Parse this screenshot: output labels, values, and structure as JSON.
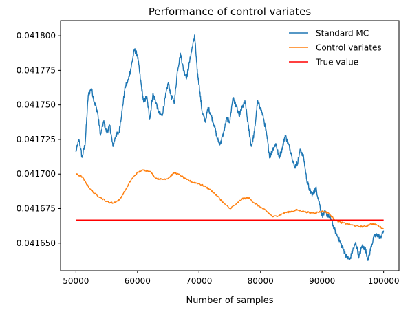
{
  "chart_data": {
    "type": "line",
    "title": "Performance of control variates",
    "xlabel": "Number of samples",
    "ylabel": "",
    "xlim": [
      47500,
      102500
    ],
    "ylim": [
      0.04163,
      0.041811
    ],
    "x_ticks": [
      50000,
      60000,
      70000,
      80000,
      90000,
      100000
    ],
    "x_tick_labels": [
      "50000",
      "60000",
      "70000",
      "80000",
      "90000",
      "100000"
    ],
    "y_ticks": [
      0.04165,
      0.041675,
      0.0417,
      0.041725,
      0.04175,
      0.041775,
      0.0418
    ],
    "y_tick_labels": [
      "0.041650",
      "0.041675",
      "0.041700",
      "0.041725",
      "0.041750",
      "0.041775",
      "0.041800"
    ],
    "grid": false,
    "legend_placement": "top-right",
    "legend": [
      "Standard MC",
      "Control variates",
      "True value"
    ],
    "series": [
      {
        "name": "Standard MC",
        "color": "#1f77b4",
        "points": [
          [
            50000,
            0.041716
          ],
          [
            50500,
            0.041725
          ],
          [
            51000,
            0.041712
          ],
          [
            51500,
            0.041722
          ],
          [
            52000,
            0.041757
          ],
          [
            52500,
            0.041762
          ],
          [
            53000,
            0.041752
          ],
          [
            53500,
            0.041745
          ],
          [
            54000,
            0.041728
          ],
          [
            54500,
            0.041738
          ],
          [
            55000,
            0.04173
          ],
          [
            55500,
            0.041735
          ],
          [
            56000,
            0.04172
          ],
          [
            56500,
            0.041728
          ],
          [
            57000,
            0.04173
          ],
          [
            57500,
            0.041746
          ],
          [
            58000,
            0.041763
          ],
          [
            58500,
            0.041768
          ],
          [
            59000,
            0.041778
          ],
          [
            59500,
            0.04179
          ],
          [
            60000,
            0.041786
          ],
          [
            60500,
            0.041768
          ],
          [
            61000,
            0.041752
          ],
          [
            61500,
            0.041756
          ],
          [
            62000,
            0.04174
          ],
          [
            62500,
            0.041758
          ],
          [
            63000,
            0.041752
          ],
          [
            63500,
            0.041744
          ],
          [
            64000,
            0.041742
          ],
          [
            64500,
            0.041755
          ],
          [
            65000,
            0.041766
          ],
          [
            65500,
            0.041756
          ],
          [
            66000,
            0.041752
          ],
          [
            66500,
            0.041775
          ],
          [
            67000,
            0.041787
          ],
          [
            67500,
            0.041775
          ],
          [
            68000,
            0.04177
          ],
          [
            68500,
            0.041782
          ],
          [
            69000,
            0.041794
          ],
          [
            69300,
            0.0418
          ],
          [
            69700,
            0.041775
          ],
          [
            70000,
            0.041765
          ],
          [
            70500,
            0.041745
          ],
          [
            71000,
            0.041738
          ],
          [
            71500,
            0.041748
          ],
          [
            72000,
            0.041742
          ],
          [
            72500,
            0.041735
          ],
          [
            73000,
            0.041725
          ],
          [
            73500,
            0.041722
          ],
          [
            74000,
            0.04173
          ],
          [
            74500,
            0.04174
          ],
          [
            75000,
            0.041738
          ],
          [
            75500,
            0.041755
          ],
          [
            76000,
            0.04175
          ],
          [
            76500,
            0.041742
          ],
          [
            77000,
            0.041748
          ],
          [
            77500,
            0.041752
          ],
          [
            78000,
            0.041735
          ],
          [
            78500,
            0.04172
          ],
          [
            79000,
            0.04173
          ],
          [
            79500,
            0.041752
          ],
          [
            80000,
            0.041748
          ],
          [
            80500,
            0.04174
          ],
          [
            81000,
            0.041728
          ],
          [
            81500,
            0.041712
          ],
          [
            82000,
            0.041718
          ],
          [
            82500,
            0.041722
          ],
          [
            83000,
            0.041712
          ],
          [
            83500,
            0.041718
          ],
          [
            84000,
            0.041728
          ],
          [
            84500,
            0.041722
          ],
          [
            85000,
            0.041715
          ],
          [
            85500,
            0.041705
          ],
          [
            86000,
            0.041708
          ],
          [
            86500,
            0.041718
          ],
          [
            87000,
            0.041712
          ],
          [
            87500,
            0.041696
          ],
          [
            88000,
            0.041688
          ],
          [
            88500,
            0.041685
          ],
          [
            89000,
            0.04169
          ],
          [
            89500,
            0.04168
          ],
          [
            90000,
            0.04167
          ],
          [
            90500,
            0.041672
          ],
          [
            91000,
            0.04167
          ],
          [
            91500,
            0.041667
          ],
          [
            92000,
            0.04166
          ],
          [
            92500,
            0.041655
          ],
          [
            93000,
            0.04165
          ],
          [
            93500,
            0.041645
          ],
          [
            94000,
            0.04164
          ],
          [
            94500,
            0.041638
          ],
          [
            95000,
            0.041645
          ],
          [
            95500,
            0.04165
          ],
          [
            96000,
            0.04164
          ],
          [
            96500,
            0.041648
          ],
          [
            97000,
            0.041646
          ],
          [
            97500,
            0.041638
          ],
          [
            98000,
            0.041648
          ],
          [
            98500,
            0.041655
          ],
          [
            99000,
            0.041656
          ],
          [
            99500,
            0.041654
          ],
          [
            100000,
            0.041659
          ]
        ]
      },
      {
        "name": "Control variates",
        "color": "#ff7f0e",
        "points": [
          [
            50000,
            0.0417
          ],
          [
            51000,
            0.041698
          ],
          [
            52000,
            0.041691
          ],
          [
            53000,
            0.041686
          ],
          [
            54000,
            0.041683
          ],
          [
            55000,
            0.04168
          ],
          [
            56000,
            0.041679
          ],
          [
            57000,
            0.041681
          ],
          [
            58000,
            0.041688
          ],
          [
            59000,
            0.041696
          ],
          [
            60000,
            0.041701
          ],
          [
            61000,
            0.041703
          ],
          [
            62000,
            0.041702
          ],
          [
            63000,
            0.041697
          ],
          [
            64000,
            0.041696
          ],
          [
            65000,
            0.041697
          ],
          [
            66000,
            0.041701
          ],
          [
            67000,
            0.041699
          ],
          [
            68000,
            0.041696
          ],
          [
            69000,
            0.041694
          ],
          [
            70000,
            0.041693
          ],
          [
            71000,
            0.041691
          ],
          [
            72000,
            0.041688
          ],
          [
            73000,
            0.041684
          ],
          [
            74000,
            0.041679
          ],
          [
            75000,
            0.041675
          ],
          [
            76000,
            0.041678
          ],
          [
            77000,
            0.041682
          ],
          [
            78000,
            0.041683
          ],
          [
            79000,
            0.041679
          ],
          [
            80000,
            0.041676
          ],
          [
            81000,
            0.041673
          ],
          [
            82000,
            0.041669
          ],
          [
            83000,
            0.04167
          ],
          [
            84000,
            0.041672
          ],
          [
            85000,
            0.041673
          ],
          [
            86000,
            0.041674
          ],
          [
            87000,
            0.041673
          ],
          [
            88000,
            0.041672
          ],
          [
            89000,
            0.041672
          ],
          [
            90000,
            0.041673
          ],
          [
            91000,
            0.041672
          ],
          [
            92000,
            0.041667
          ],
          [
            93000,
            0.041665
          ],
          [
            94000,
            0.041664
          ],
          [
            95000,
            0.041663
          ],
          [
            96000,
            0.041662
          ],
          [
            97000,
            0.041662
          ],
          [
            98000,
            0.041664
          ],
          [
            99000,
            0.041663
          ],
          [
            100000,
            0.04166
          ]
        ]
      },
      {
        "name": "True value",
        "color": "#ff0000",
        "points": [
          [
            50000,
            0.0416667
          ],
          [
            100000,
            0.0416667
          ]
        ]
      }
    ]
  }
}
